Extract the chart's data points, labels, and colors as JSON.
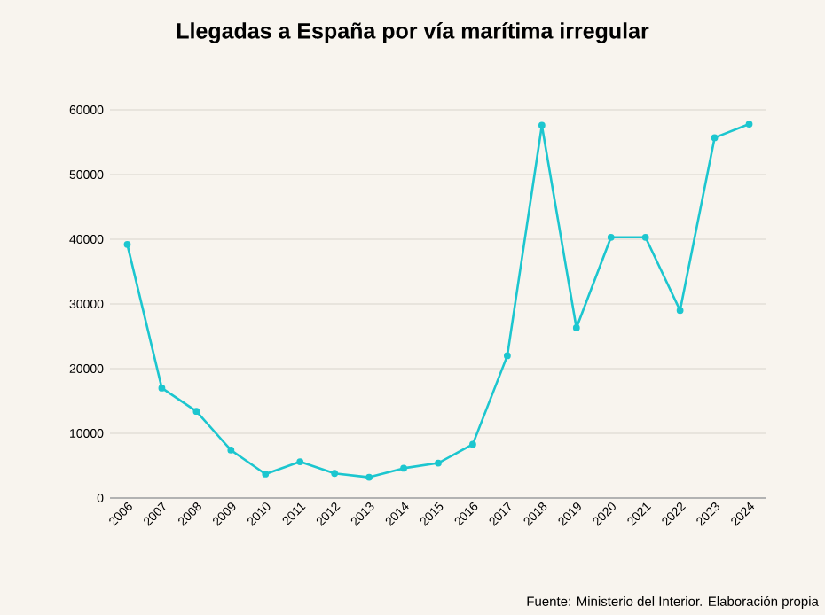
{
  "chart_data": {
    "type": "line",
    "title": "Llegadas a España por vía marítima irregular",
    "categories": [
      "2006",
      "2007",
      "2008",
      "2009",
      "2010",
      "2011",
      "2012",
      "2013",
      "2014",
      "2015",
      "2016",
      "2017",
      "2018",
      "2019",
      "2020",
      "2021",
      "2022",
      "2023",
      "2024"
    ],
    "series": [
      {
        "color": "#1cc6cf",
        "values": [
          39200,
          17000,
          13400,
          7400,
          3700,
          5600,
          3800,
          3200,
          4600,
          5400,
          8300,
          22000,
          57600,
          26300,
          40300,
          40300,
          29000,
          55700,
          57800
        ]
      }
    ],
    "ylim": [
      0,
      60000
    ],
    "yticks": [
      0,
      10000,
      20000,
      30000,
      40000,
      50000,
      60000
    ],
    "grid": "y",
    "marker": "circle",
    "line_style": "solid",
    "annotations": [
      "Fuente: Ministerio del Interior. Elaboración propia"
    ]
  }
}
